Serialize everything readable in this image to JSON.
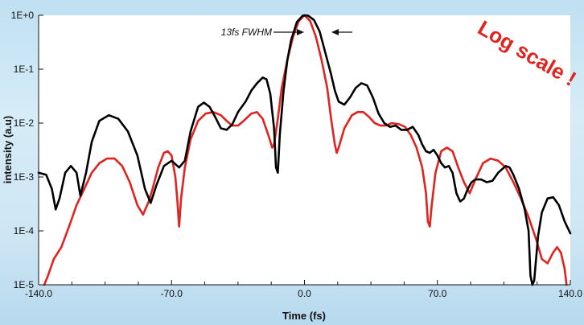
{
  "chart_data": {
    "type": "line",
    "title": "",
    "xlabel": "Time (fs)",
    "ylabel": "intensity (a.u)",
    "xlim": [
      -140,
      140
    ],
    "ylim": [
      1e-05,
      1
    ],
    "yscale": "log",
    "x_ticks": [
      {
        "value": -140,
        "label": "-140.0"
      },
      {
        "value": -70,
        "label": "-70.0"
      },
      {
        "value": 0,
        "label": "0.0"
      },
      {
        "value": 70,
        "label": "70.0"
      },
      {
        "value": 140,
        "label": "140.0"
      }
    ],
    "y_ticks": [
      {
        "value": 1,
        "label": "1E+0"
      },
      {
        "value": 0.1,
        "label": "1E-1"
      },
      {
        "value": 0.01,
        "label": "1E-2"
      },
      {
        "value": 0.001,
        "label": "1E-3"
      },
      {
        "value": 0.0001,
        "label": "1E-4"
      },
      {
        "value": 1e-05,
        "label": "1E-5"
      }
    ],
    "grid": false,
    "series": [
      {
        "color": "#000000",
        "points": [
          [
            -140,
            0.0012
          ],
          [
            -136,
            0.0011
          ],
          [
            -133,
            0.0006
          ],
          [
            -131,
            0.00025
          ],
          [
            -129,
            0.0004
          ],
          [
            -126,
            0.0012
          ],
          [
            -123,
            0.0016
          ],
          [
            -120,
            0.0012
          ],
          [
            -118,
            0.00045
          ],
          [
            -115,
            0.0012
          ],
          [
            -112,
            0.0045
          ],
          [
            -108,
            0.011
          ],
          [
            -103,
            0.014
          ],
          [
            -98,
            0.012
          ],
          [
            -93,
            0.007
          ],
          [
            -88,
            0.0025
          ],
          [
            -84,
            0.0006
          ],
          [
            -81,
            0.00033
          ],
          [
            -78,
            0.0007
          ],
          [
            -74,
            0.0016
          ],
          [
            -70,
            0.002
          ],
          [
            -66,
            0.0015
          ],
          [
            -63,
            0.002
          ],
          [
            -60,
            0.007
          ],
          [
            -56,
            0.02
          ],
          [
            -53,
            0.024
          ],
          [
            -50,
            0.02
          ],
          [
            -47,
            0.013
          ],
          [
            -44,
            0.008
          ],
          [
            -41,
            0.0075
          ],
          [
            -38,
            0.0095
          ],
          [
            -35,
            0.016
          ],
          [
            -31,
            0.025
          ],
          [
            -28,
            0.04
          ],
          [
            -25,
            0.055
          ],
          [
            -22,
            0.07
          ],
          [
            -20,
            0.065
          ],
          [
            -18,
            0.035
          ],
          [
            -16,
            0.008
          ],
          [
            -15,
            0.0015
          ],
          [
            -14,
            0.0012
          ],
          [
            -13,
            0.006
          ],
          [
            -11,
            0.04
          ],
          [
            -9,
            0.15
          ],
          [
            -7,
            0.35
          ],
          [
            -4,
            0.75
          ],
          [
            -1,
            0.98
          ],
          [
            0,
            1
          ],
          [
            2,
            0.98
          ],
          [
            5,
            0.82
          ],
          [
            8,
            0.5
          ],
          [
            11,
            0.2
          ],
          [
            14,
            0.08
          ],
          [
            16,
            0.04
          ],
          [
            18,
            0.025
          ],
          [
            21,
            0.022
          ],
          [
            24,
            0.03
          ],
          [
            27,
            0.045
          ],
          [
            30,
            0.055
          ],
          [
            33,
            0.05
          ],
          [
            36,
            0.03
          ],
          [
            39,
            0.015
          ],
          [
            42,
            0.01
          ],
          [
            45,
            0.0085
          ],
          [
            48,
            0.009
          ],
          [
            51,
            0.0075
          ],
          [
            54,
            0.0075
          ],
          [
            57,
            0.0085
          ],
          [
            60,
            0.006
          ],
          [
            62,
            0.004
          ],
          [
            64,
            0.003
          ],
          [
            66,
            0.0028
          ],
          [
            68,
            0.0032
          ],
          [
            70,
            0.0025
          ],
          [
            72,
            0.0018
          ],
          [
            74,
            0.0015
          ],
          [
            76,
            0.0016
          ],
          [
            78,
            0.0012
          ],
          [
            80,
            0.0005
          ],
          [
            82,
            0.00035
          ],
          [
            84,
            0.0004
          ],
          [
            86,
            0.0006
          ],
          [
            88,
            0.0008
          ],
          [
            90,
            0.0009
          ],
          [
            93,
            0.0009
          ],
          [
            96,
            0.0008
          ],
          [
            99,
            0.00085
          ],
          [
            102,
            0.0012
          ],
          [
            106,
            0.0016
          ],
          [
            108,
            0.0015
          ],
          [
            110,
            0.0011
          ],
          [
            113,
            0.0006
          ],
          [
            116,
            0.00025
          ],
          [
            118,
            0.0001
          ],
          [
            119,
            1.5e-05
          ],
          [
            120,
            1e-05
          ],
          [
            121,
            1.2e-05
          ],
          [
            123,
            8e-05
          ],
          [
            125,
            0.00022
          ],
          [
            128,
            0.0004
          ],
          [
            131,
            0.00042
          ],
          [
            134,
            0.0003
          ],
          [
            137,
            0.00015
          ],
          [
            140,
            9e-05
          ]
        ]
      },
      {
        "color": "#e0231f",
        "points": [
          [
            -137,
            1e-05
          ],
          [
            -135,
            1.5e-05
          ],
          [
            -132,
            3e-05
          ],
          [
            -128,
            5e-05
          ],
          [
            -124,
            0.00012
          ],
          [
            -120,
            0.0003
          ],
          [
            -116,
            0.0006
          ],
          [
            -112,
            0.0012
          ],
          [
            -108,
            0.0018
          ],
          [
            -104,
            0.0022
          ],
          [
            -100,
            0.0022
          ],
          [
            -96,
            0.0016
          ],
          [
            -92,
            0.0008
          ],
          [
            -88,
            0.0003
          ],
          [
            -85,
            0.0002
          ],
          [
            -82,
            0.00035
          ],
          [
            -80,
            0.0006
          ],
          [
            -77,
            0.0015
          ],
          [
            -74,
            0.0028
          ],
          [
            -72,
            0.003
          ],
          [
            -70,
            0.0025
          ],
          [
            -68,
            0.001
          ],
          [
            -67,
            0.0004
          ],
          [
            -66,
            0.00012
          ],
          [
            -65,
            0.0004
          ],
          [
            -63,
            0.0015
          ],
          [
            -60,
            0.005
          ],
          [
            -56,
            0.011
          ],
          [
            -52,
            0.015
          ],
          [
            -48,
            0.016
          ],
          [
            -44,
            0.014
          ],
          [
            -41,
            0.011
          ],
          [
            -38,
            0.009
          ],
          [
            -35,
            0.009
          ],
          [
            -32,
            0.011
          ],
          [
            -28,
            0.015
          ],
          [
            -25,
            0.016
          ],
          [
            -22,
            0.012
          ],
          [
            -19,
            0.006
          ],
          [
            -17,
            0.0035
          ],
          [
            -16,
            0.004
          ],
          [
            -14,
            0.012
          ],
          [
            -12,
            0.045
          ],
          [
            -9,
            0.15
          ],
          [
            -6,
            0.4
          ],
          [
            -3,
            0.78
          ],
          [
            0,
            1
          ],
          [
            3,
            0.78
          ],
          [
            6,
            0.4
          ],
          [
            9,
            0.15
          ],
          [
            12,
            0.045
          ],
          [
            14,
            0.012
          ],
          [
            16,
            0.004
          ],
          [
            17,
            0.0028
          ],
          [
            18,
            0.0035
          ],
          [
            21,
            0.008
          ],
          [
            25,
            0.014
          ],
          [
            28,
            0.016
          ],
          [
            31,
            0.016
          ],
          [
            34,
            0.013
          ],
          [
            37,
            0.01
          ],
          [
            40,
            0.009
          ],
          [
            43,
            0.009
          ],
          [
            46,
            0.01
          ],
          [
            50,
            0.0095
          ],
          [
            53,
            0.0085
          ],
          [
            56,
            0.006
          ],
          [
            59,
            0.0035
          ],
          [
            62,
            0.0015
          ],
          [
            64,
            0.0005
          ],
          [
            65,
            0.00015
          ],
          [
            66,
            0.00012
          ],
          [
            67,
            0.0003
          ],
          [
            69,
            0.0012
          ],
          [
            72,
            0.003
          ],
          [
            75,
            0.0035
          ],
          [
            78,
            0.003
          ],
          [
            81,
            0.0015
          ],
          [
            84,
            0.0008
          ],
          [
            87,
            0.0005
          ],
          [
            90,
            0.0009
          ],
          [
            94,
            0.0018
          ],
          [
            98,
            0.0022
          ],
          [
            102,
            0.002
          ],
          [
            106,
            0.0015
          ],
          [
            110,
            0.0008
          ],
          [
            114,
            0.0004
          ],
          [
            118,
            0.00018
          ],
          [
            122,
            7e-05
          ],
          [
            125,
            3e-05
          ],
          [
            128,
            2.5e-05
          ],
          [
            131,
            4e-05
          ],
          [
            133,
            5e-05
          ],
          [
            135,
            4e-05
          ],
          [
            137,
            2e-05
          ],
          [
            138,
            1e-05
          ]
        ]
      }
    ],
    "annotations": [
      {
        "text": "13fs FWHM"
      },
      {
        "text": "Log scale !"
      }
    ]
  }
}
